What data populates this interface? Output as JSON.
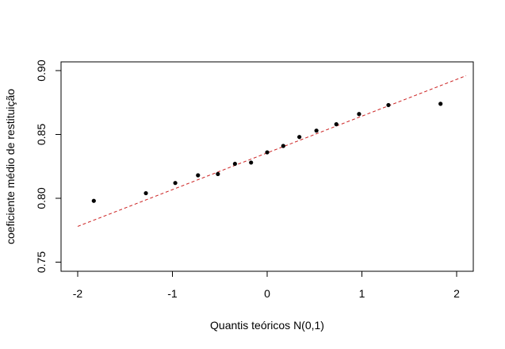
{
  "chart_data": {
    "type": "scatter",
    "title": "",
    "xlabel": "Quantis teóricos N(0,1)",
    "ylabel": "coeficiente médio de restituição",
    "xlim": [
      -2.0,
      2.1
    ],
    "ylim": [
      0.75,
      0.9
    ],
    "xticks": [
      -2,
      -1,
      0,
      1,
      2
    ],
    "xtick_labels": [
      "-2",
      "-1",
      "0",
      "1",
      "2"
    ],
    "yticks": [
      0.75,
      0.8,
      0.85,
      0.9
    ],
    "ytick_labels": [
      "0.75",
      "0.80",
      "0.85",
      "0.90"
    ],
    "grid": false,
    "series": [
      {
        "marker": "filled-circle",
        "color": "#000000",
        "x": [
          -1.83,
          -1.28,
          -0.97,
          -0.73,
          -0.52,
          -0.34,
          -0.17,
          0.0,
          0.17,
          0.34,
          0.52,
          0.73,
          0.97,
          1.28,
          1.83
        ],
        "y": [
          0.798,
          0.804,
          0.812,
          0.818,
          0.819,
          0.827,
          0.828,
          0.836,
          0.841,
          0.848,
          0.853,
          0.858,
          0.866,
          0.873,
          0.874
        ]
      }
    ],
    "reference_line": {
      "style": "dashed",
      "color": "#cc2222",
      "x": [
        -2.0,
        2.1
      ],
      "y": [
        0.778,
        0.896
      ]
    }
  }
}
